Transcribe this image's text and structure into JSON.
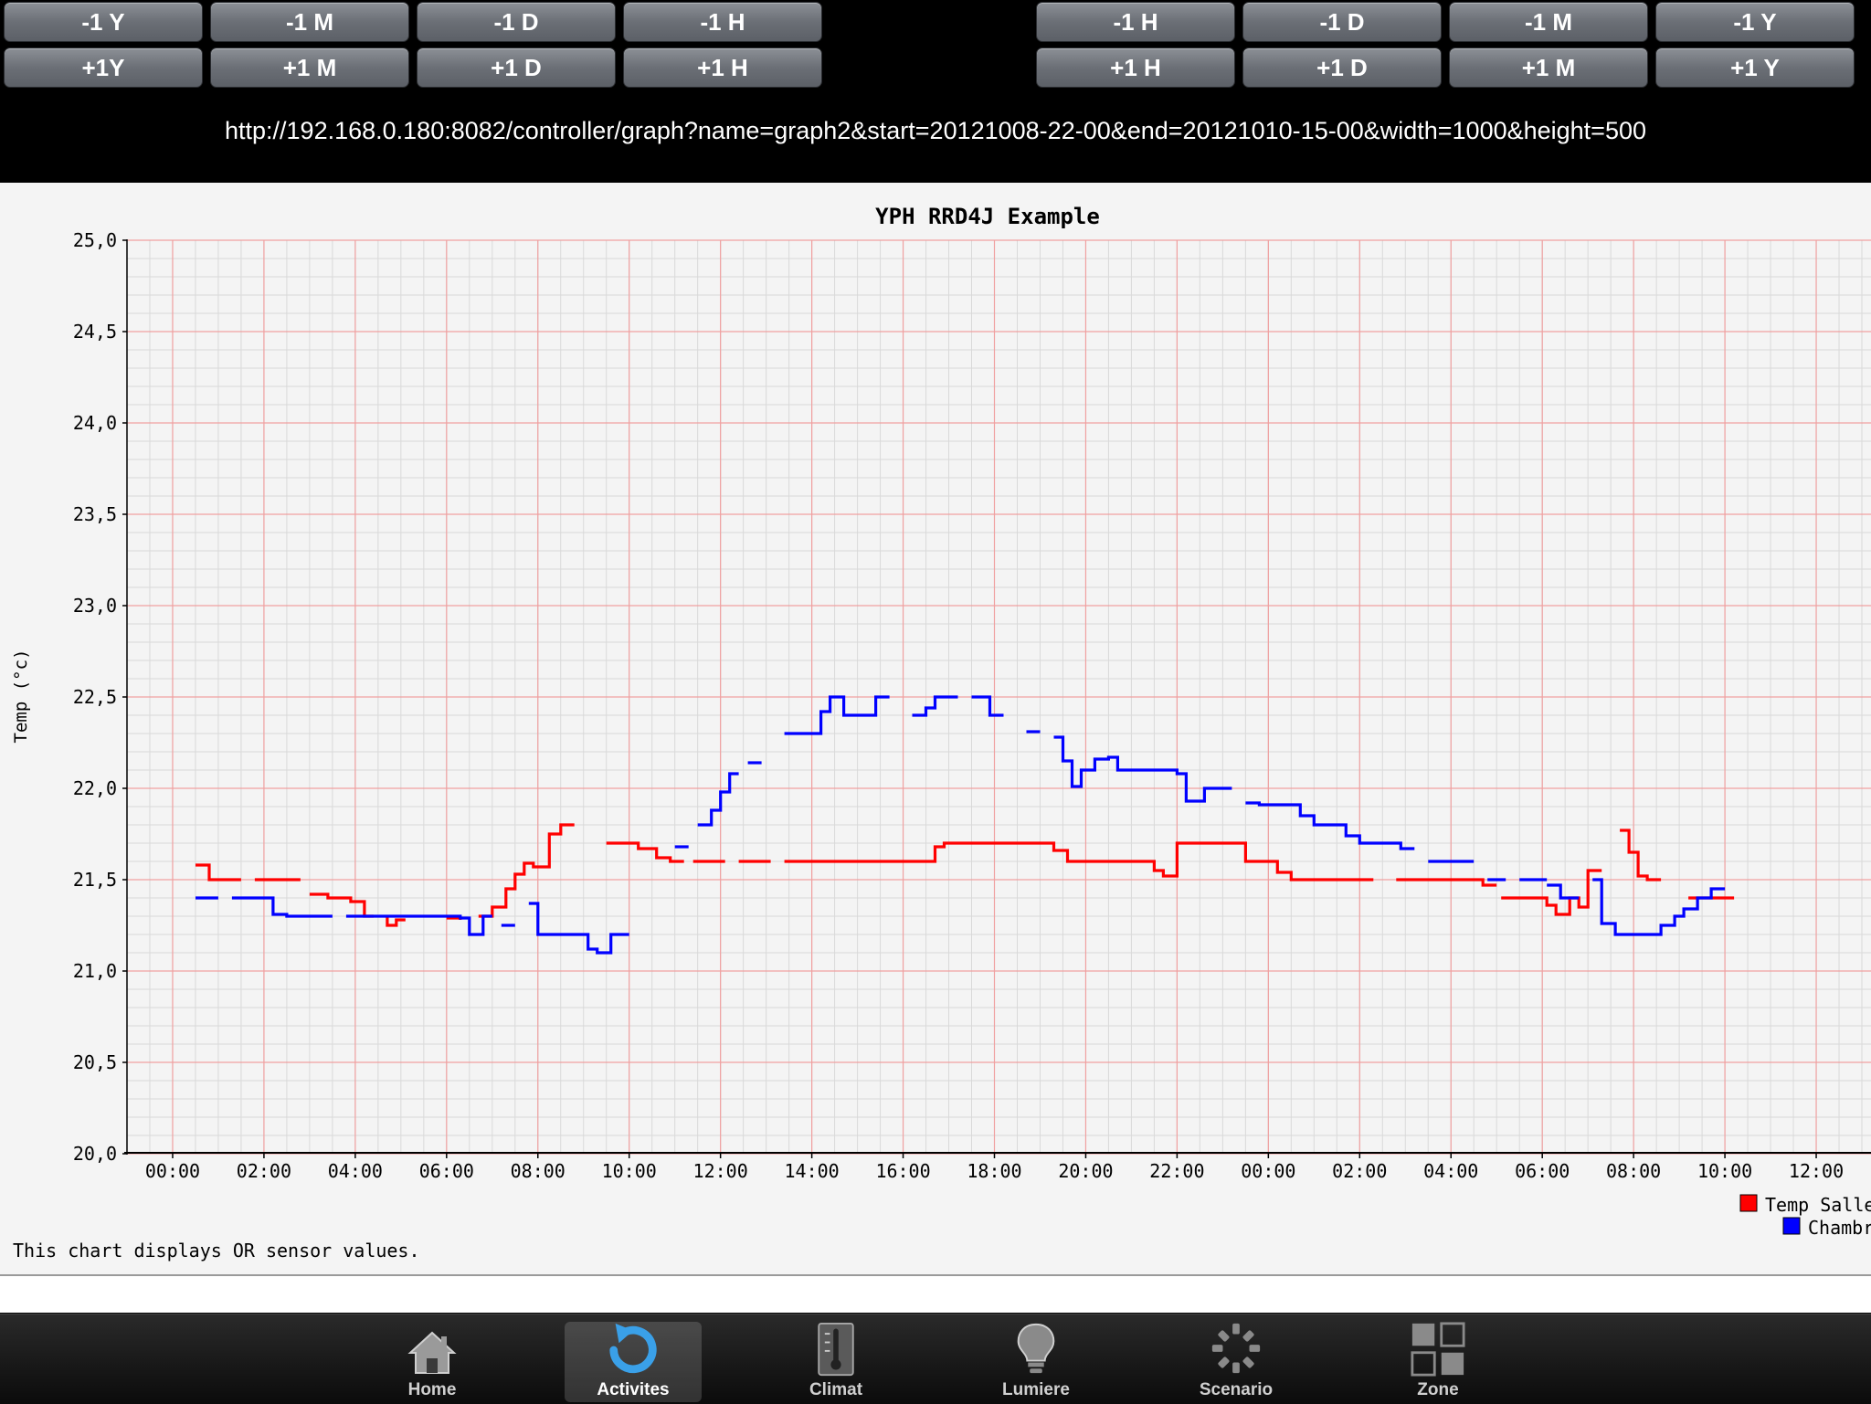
{
  "nav": {
    "left_row1": [
      "-1 Y",
      "-1 M",
      "-1 D",
      "-1 H"
    ],
    "left_row2": [
      "+1Y",
      "+1 M",
      "+1 D",
      "+1 H"
    ],
    "right_row1": [
      "-1 H",
      "-1 D",
      "-1 M",
      "-1 Y"
    ],
    "right_row2": [
      "+1 H",
      "+1 D",
      "+1 M",
      "+1 Y"
    ]
  },
  "url": "http://192.168.0.180:8082/controller/graph?name=graph2&start=20121008-22-00&end=20121010-15-00&width=1000&height=500",
  "chart_data": {
    "type": "line",
    "title": "YPH RRD4J Example",
    "ylabel": "Temp (°c)",
    "xlabel": "",
    "ylim": [
      20.0,
      25.0
    ],
    "xlim": [
      -1,
      37.2
    ],
    "y_ticks": [
      "25,0",
      "24,5",
      "24,0",
      "23,5",
      "23,0",
      "22,5",
      "22,0",
      "21,5",
      "21,0",
      "20,5",
      "20,0"
    ],
    "x_ticks": [
      "00:00",
      "02:00",
      "04:00",
      "06:00",
      "08:00",
      "10:00",
      "12:00",
      "14:00",
      "16:00",
      "18:00",
      "20:00",
      "22:00",
      "00:00",
      "02:00",
      "04:00",
      "06:00",
      "08:00",
      "10:00",
      "12:00"
    ],
    "grid": true,
    "legend_position": "bottom-right",
    "footer": "This chart displays OR sensor values.",
    "series": [
      {
        "name": "Temp Salle",
        "color": "#ff0000",
        "segments": [
          [
            [
              0.5,
              21.58
            ],
            [
              0.8,
              21.58
            ],
            [
              0.8,
              21.5
            ],
            [
              1.5,
              21.5
            ]
          ],
          [
            [
              1.8,
              21.5
            ],
            [
              2.8,
              21.5
            ]
          ],
          [
            [
              3.0,
              21.42
            ],
            [
              3.4,
              21.42
            ],
            [
              3.4,
              21.4
            ],
            [
              3.9,
              21.4
            ],
            [
              3.9,
              21.38
            ],
            [
              4.2,
              21.38
            ],
            [
              4.2,
              21.3
            ],
            [
              4.4,
              21.3
            ]
          ],
          [
            [
              4.7,
              21.3
            ],
            [
              4.7,
              21.25
            ],
            [
              4.9,
              21.25
            ],
            [
              4.9,
              21.28
            ],
            [
              5.1,
              21.28
            ]
          ],
          [
            [
              6.0,
              21.29
            ],
            [
              6.3,
              21.29
            ],
            [
              6.3,
              21.28
            ]
          ],
          [
            [
              6.7,
              21.3
            ],
            [
              7.0,
              21.3
            ],
            [
              7.0,
              21.35
            ],
            [
              7.3,
              21.35
            ],
            [
              7.3,
              21.45
            ],
            [
              7.5,
              21.45
            ],
            [
              7.5,
              21.53
            ],
            [
              7.7,
              21.53
            ],
            [
              7.7,
              21.59
            ],
            [
              7.9,
              21.59
            ],
            [
              7.9,
              21.57
            ],
            [
              8.25,
              21.57
            ],
            [
              8.25,
              21.75
            ],
            [
              8.5,
              21.75
            ],
            [
              8.5,
              21.8
            ],
            [
              8.8,
              21.8
            ]
          ],
          [
            [
              9.5,
              21.7
            ],
            [
              10.2,
              21.7
            ],
            [
              10.2,
              21.67
            ],
            [
              10.6,
              21.67
            ],
            [
              10.6,
              21.62
            ],
            [
              10.9,
              21.62
            ],
            [
              10.9,
              21.6
            ],
            [
              11.2,
              21.6
            ]
          ],
          [
            [
              11.4,
              21.6
            ],
            [
              12.1,
              21.6
            ]
          ],
          [
            [
              12.4,
              21.6
            ],
            [
              13.1,
              21.6
            ]
          ],
          [
            [
              13.4,
              21.6
            ],
            [
              16.7,
              21.6
            ],
            [
              16.7,
              21.68
            ],
            [
              16.9,
              21.68
            ],
            [
              16.9,
              21.7
            ],
            [
              19.3,
              21.7
            ],
            [
              19.3,
              21.66
            ],
            [
              19.6,
              21.66
            ],
            [
              19.6,
              21.6
            ],
            [
              21.5,
              21.6
            ],
            [
              21.5,
              21.55
            ],
            [
              21.7,
              21.55
            ],
            [
              21.7,
              21.52
            ],
            [
              22.0,
              21.52
            ],
            [
              22.0,
              21.7
            ],
            [
              23.5,
              21.7
            ],
            [
              23.5,
              21.6
            ],
            [
              24.2,
              21.6
            ],
            [
              24.2,
              21.54
            ],
            [
              24.5,
              21.54
            ],
            [
              24.5,
              21.5
            ],
            [
              26.3,
              21.5
            ]
          ],
          [
            [
              26.8,
              21.5
            ],
            [
              28.7,
              21.5
            ],
            [
              28.7,
              21.47
            ],
            [
              29.0,
              21.47
            ]
          ],
          [
            [
              29.1,
              21.4
            ],
            [
              30.1,
              21.4
            ],
            [
              30.1,
              21.36
            ],
            [
              30.3,
              21.36
            ],
            [
              30.3,
              21.31
            ],
            [
              30.6,
              21.31
            ],
            [
              30.6,
              21.4
            ],
            [
              30.8,
              21.4
            ],
            [
              30.8,
              21.35
            ],
            [
              31.0,
              21.35
            ],
            [
              31.0,
              21.55
            ],
            [
              31.3,
              21.55
            ]
          ],
          [
            [
              31.7,
              21.77
            ],
            [
              31.9,
              21.77
            ],
            [
              31.9,
              21.65
            ],
            [
              32.1,
              21.65
            ],
            [
              32.1,
              21.52
            ],
            [
              32.3,
              21.52
            ],
            [
              32.3,
              21.5
            ],
            [
              32.6,
              21.5
            ]
          ],
          [
            [
              33.2,
              21.4
            ],
            [
              34.2,
              21.4
            ]
          ]
        ]
      },
      {
        "name": "Chambr",
        "color": "#0000ff",
        "segments": [
          [
            [
              0.5,
              21.4
            ],
            [
              1.0,
              21.4
            ]
          ],
          [
            [
              1.3,
              21.4
            ],
            [
              2.2,
              21.4
            ],
            [
              2.2,
              21.31
            ],
            [
              2.5,
              21.31
            ],
            [
              2.5,
              21.3
            ],
            [
              3.5,
              21.3
            ]
          ],
          [
            [
              3.8,
              21.3
            ],
            [
              6.3,
              21.3
            ],
            [
              6.3,
              21.29
            ],
            [
              6.5,
              21.29
            ],
            [
              6.5,
              21.2
            ],
            [
              6.8,
              21.2
            ],
            [
              6.8,
              21.3
            ],
            [
              7.0,
              21.3
            ]
          ],
          [
            [
              7.2,
              21.25
            ],
            [
              7.5,
              21.25
            ]
          ],
          [
            [
              7.8,
              21.37
            ],
            [
              8.0,
              21.37
            ],
            [
              8.0,
              21.2
            ],
            [
              9.1,
              21.2
            ],
            [
              9.1,
              21.12
            ],
            [
              9.3,
              21.12
            ],
            [
              9.3,
              21.1
            ],
            [
              9.6,
              21.1
            ],
            [
              9.6,
              21.2
            ],
            [
              10.0,
              21.2
            ]
          ],
          [
            [
              11.0,
              21.68
            ],
            [
              11.3,
              21.68
            ]
          ],
          [
            [
              11.5,
              21.8
            ],
            [
              11.8,
              21.8
            ],
            [
              11.8,
              21.88
            ],
            [
              12.0,
              21.88
            ],
            [
              12.0,
              21.98
            ],
            [
              12.2,
              21.98
            ],
            [
              12.2,
              22.08
            ],
            [
              12.4,
              22.08
            ]
          ],
          [
            [
              12.6,
              22.14
            ],
            [
              12.9,
              22.14
            ]
          ],
          [
            [
              13.4,
              22.3
            ],
            [
              14.2,
              22.3
            ],
            [
              14.2,
              22.42
            ],
            [
              14.4,
              22.42
            ],
            [
              14.4,
              22.5
            ],
            [
              14.7,
              22.5
            ],
            [
              14.7,
              22.4
            ],
            [
              15.4,
              22.4
            ],
            [
              15.4,
              22.5
            ],
            [
              15.7,
              22.5
            ]
          ],
          [
            [
              16.2,
              22.4
            ],
            [
              16.5,
              22.4
            ],
            [
              16.5,
              22.44
            ],
            [
              16.7,
              22.44
            ],
            [
              16.7,
              22.5
            ],
            [
              17.2,
              22.5
            ]
          ],
          [
            [
              17.5,
              22.5
            ],
            [
              17.9,
              22.5
            ],
            [
              17.9,
              22.4
            ],
            [
              18.2,
              22.4
            ]
          ],
          [
            [
              18.7,
              22.31
            ],
            [
              19.0,
              22.31
            ]
          ],
          [
            [
              19.3,
              22.28
            ],
            [
              19.5,
              22.28
            ],
            [
              19.5,
              22.15
            ],
            [
              19.7,
              22.15
            ],
            [
              19.7,
              22.01
            ],
            [
              19.9,
              22.01
            ],
            [
              19.9,
              22.1
            ],
            [
              20.2,
              22.1
            ],
            [
              20.2,
              22.16
            ],
            [
              20.5,
              22.16
            ],
            [
              20.5,
              22.17
            ],
            [
              20.7,
              22.17
            ],
            [
              20.7,
              22.1
            ],
            [
              22.0,
              22.1
            ],
            [
              22.0,
              22.08
            ],
            [
              22.2,
              22.08
            ],
            [
              22.2,
              21.93
            ],
            [
              22.6,
              21.93
            ],
            [
              22.6,
              22.0
            ],
            [
              23.2,
              22.0
            ]
          ],
          [
            [
              23.5,
              21.92
            ],
            [
              23.8,
              21.92
            ],
            [
              23.8,
              21.91
            ],
            [
              24.7,
              21.91
            ],
            [
              24.7,
              21.85
            ],
            [
              25.0,
              21.85
            ],
            [
              25.0,
              21.8
            ],
            [
              25.7,
              21.8
            ],
            [
              25.7,
              21.74
            ],
            [
              26.0,
              21.74
            ],
            [
              26.0,
              21.7
            ],
            [
              26.9,
              21.7
            ],
            [
              26.9,
              21.67
            ],
            [
              27.2,
              21.67
            ]
          ],
          [
            [
              27.5,
              21.6
            ],
            [
              28.5,
              21.6
            ]
          ],
          [
            [
              28.8,
              21.5
            ],
            [
              29.2,
              21.5
            ]
          ],
          [
            [
              29.5,
              21.5
            ],
            [
              30.1,
              21.5
            ]
          ],
          [
            [
              30.1,
              21.47
            ],
            [
              30.4,
              21.47
            ],
            [
              30.4,
              21.4
            ],
            [
              30.8,
              21.4
            ]
          ],
          [
            [
              31.1,
              21.5
            ],
            [
              31.3,
              21.5
            ],
            [
              31.3,
              21.26
            ],
            [
              31.6,
              21.26
            ],
            [
              31.6,
              21.2
            ],
            [
              32.6,
              21.2
            ],
            [
              32.6,
              21.25
            ],
            [
              32.9,
              21.25
            ],
            [
              32.9,
              21.3
            ],
            [
              33.1,
              21.3
            ],
            [
              33.1,
              21.34
            ],
            [
              33.4,
              21.34
            ],
            [
              33.4,
              21.4
            ],
            [
              33.7,
              21.4
            ],
            [
              33.7,
              21.45
            ],
            [
              34.0,
              21.45
            ]
          ]
        ]
      }
    ]
  },
  "tabs": [
    {
      "label": "Home",
      "icon": "home-icon",
      "active": false
    },
    {
      "label": "Activites",
      "icon": "refresh-icon",
      "active": true
    },
    {
      "label": "Climat",
      "icon": "thermometer-icon",
      "active": false
    },
    {
      "label": "Lumiere",
      "icon": "lightbulb-icon",
      "active": false
    },
    {
      "label": "Scenario",
      "icon": "spinner-icon",
      "active": false
    },
    {
      "label": "Zone",
      "icon": "grid-icon",
      "active": false
    }
  ]
}
